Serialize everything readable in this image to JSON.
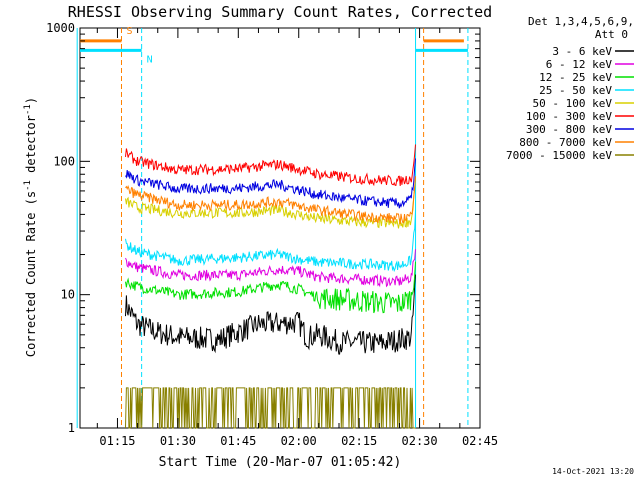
{
  "chart_data": {
    "type": "line",
    "title": "RHESSI Observing Summary Count Rates, Corrected",
    "xlabel": "Start Time (20-Mar-07 01:05:42)",
    "ylabel": "Corrected Count Rate (s⁻¹ detector⁻¹)",
    "ylabel_parts": {
      "main": "Corrected Count Rate (s",
      "sup1": "-1",
      "mid": " detector",
      "sup2": "-1",
      "end": ")"
    },
    "yscale": "log",
    "ylim": [
      1,
      1000
    ],
    "xlim": [
      "01:05:42",
      "02:45:00"
    ],
    "x_ticks": [
      "01:15",
      "01:30",
      "01:45",
      "02:00",
      "02:15",
      "02:30",
      "02:45"
    ],
    "y_ticks": [
      "1",
      "10",
      "100",
      "1000"
    ],
    "legend_header": [
      "Det 1,3,4,5,6,9,",
      "Att 0"
    ],
    "legend_position": "right",
    "series": [
      {
        "name": "3 - 6 keV",
        "color": "#000000",
        "x": [
          "01:17",
          "01:20",
          "01:25",
          "01:30",
          "01:40",
          "01:50",
          "02:00",
          "02:02",
          "02:05",
          "02:10",
          "02:20",
          "02:28",
          "02:29"
        ],
        "values": [
          8.5,
          6,
          5.2,
          4.8,
          4.6,
          6.0,
          6.2,
          4.8,
          5.0,
          4.4,
          4.3,
          4.8,
          13
        ]
      },
      {
        "name": "6 - 12 keV",
        "color": "#e000e0",
        "x": [
          "01:17",
          "01:20",
          "01:30",
          "01:45",
          "01:55",
          "02:00",
          "02:05",
          "02:15",
          "02:25",
          "02:28",
          "02:29"
        ],
        "values": [
          18,
          16,
          14,
          14,
          15.5,
          15,
          13.5,
          13,
          12.5,
          13.5,
          22
        ]
      },
      {
        "name": "12 - 25 keV",
        "color": "#00e000",
        "x": [
          "01:17",
          "01:20",
          "01:30",
          "01:45",
          "01:55",
          "02:00",
          "02:05",
          "02:15",
          "02:25",
          "02:28",
          "02:29"
        ],
        "values": [
          12.5,
          11.5,
          10,
          10.5,
          12,
          11,
          9.5,
          9,
          8.5,
          9.5,
          18
        ]
      },
      {
        "name": "25 - 50 keV",
        "color": "#00e0ff",
        "x": [
          "01:17",
          "01:20",
          "01:30",
          "01:45",
          "01:55",
          "02:00",
          "02:05",
          "02:15",
          "02:25",
          "02:28",
          "02:29"
        ],
        "values": [
          24,
          21,
          18,
          19,
          20,
          18.5,
          17.5,
          17,
          16.5,
          18,
          40
        ]
      },
      {
        "name": "50 - 100 keV",
        "color": "#d8d000",
        "x": [
          "01:17",
          "01:20",
          "01:30",
          "01:45",
          "01:55",
          "02:05",
          "02:15",
          "02:25",
          "02:28",
          "02:29"
        ],
        "values": [
          50,
          45,
          41,
          41,
          43,
          37,
          35,
          34,
          36,
          70
        ]
      },
      {
        "name": "100 - 300 keV",
        "color": "#ff0000",
        "x": [
          "01:17",
          "01:20",
          "01:30",
          "01:45",
          "01:55",
          "02:05",
          "02:15",
          "02:25",
          "02:28",
          "02:29"
        ],
        "values": [
          115,
          100,
          86,
          88,
          95,
          80,
          74,
          71,
          75,
          125
        ]
      },
      {
        "name": "300 - 800 keV",
        "color": "#0000e0",
        "x": [
          "01:17",
          "01:20",
          "01:30",
          "01:45",
          "01:55",
          "02:05",
          "02:15",
          "02:25",
          "02:28",
          "02:29"
        ],
        "values": [
          82,
          72,
          62,
          63,
          67,
          56,
          51,
          48,
          52,
          100
        ]
      },
      {
        "name": "800 - 7000 keV",
        "color": "#ff8000",
        "x": [
          "01:17",
          "01:20",
          "01:30",
          "01:45",
          "01:55",
          "02:05",
          "02:15",
          "02:25",
          "02:28",
          "02:29"
        ],
        "values": [
          62,
          56,
          47,
          47,
          50,
          43,
          39,
          37,
          39,
          80
        ]
      },
      {
        "name": "7000 - 15000 keV",
        "color": "#888000",
        "x": [
          "01:17",
          "01:20",
          "01:22",
          "01:25",
          "01:35",
          "01:45",
          "01:55",
          "02:05",
          "02:15",
          "02:25",
          "02:29"
        ],
        "values": [
          2,
          2,
          1,
          1,
          2,
          2,
          2,
          2,
          2,
          2,
          2
        ]
      }
    ],
    "annotations": [
      {
        "label": "S",
        "kind": "SAA",
        "color": "#ff8000",
        "time_lines": [
          "01:16",
          "02:31"
        ],
        "bars": [
          [
            "01:05",
            "01:16"
          ],
          [
            "02:31",
            "02:41"
          ]
        ],
        "level": 800
      },
      {
        "label": "N",
        "kind": "Night",
        "color": "#00e0ff",
        "time_lines": [
          "01:05",
          "01:21",
          "02:29",
          "02:42"
        ],
        "bars": [
          [
            "01:05",
            "01:21"
          ],
          [
            "02:29",
            "02:42"
          ]
        ],
        "level": 680
      }
    ],
    "footer_date": "14-Oct-2021 13:20"
  }
}
